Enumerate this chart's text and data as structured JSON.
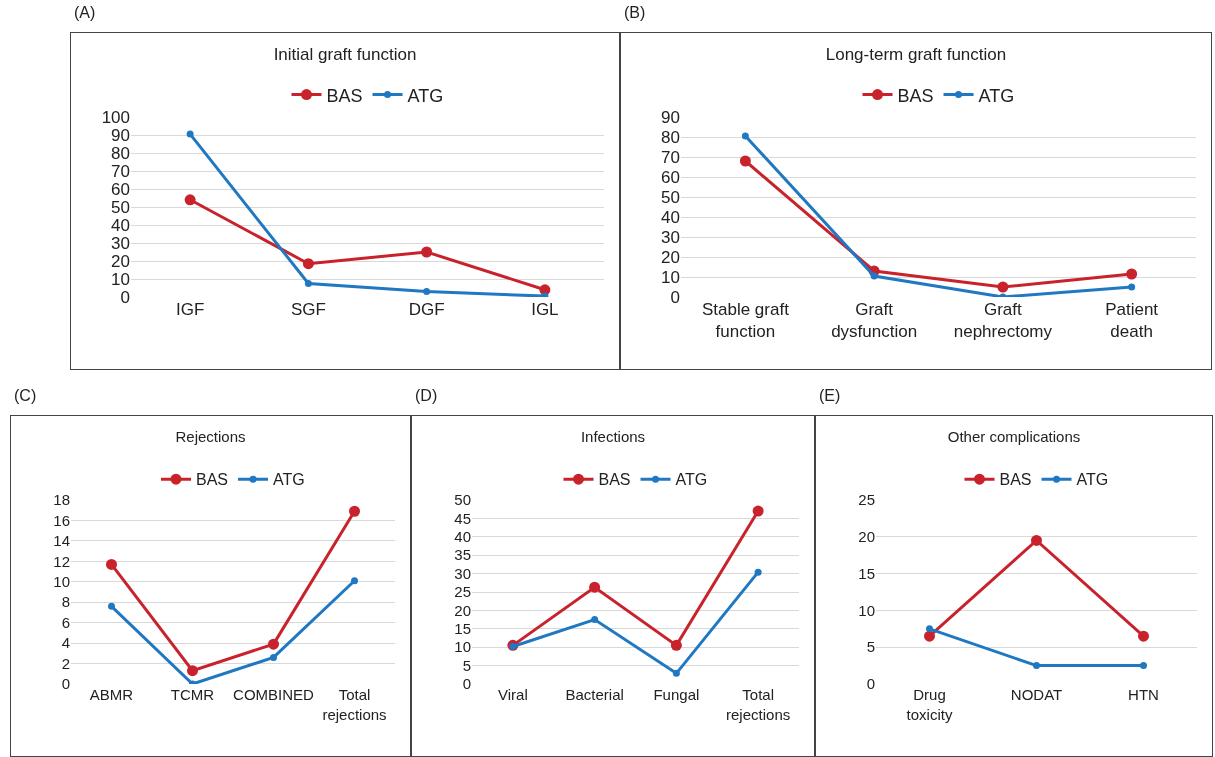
{
  "chart_data": [
    {
      "type": "line",
      "title": "Initial graft function",
      "annotations": [
        "(A)"
      ],
      "categories": [
        "IGF",
        "SGF",
        "DGF",
        "IGL"
      ],
      "ylim": [
        0,
        100
      ],
      "yticks": [
        0,
        10,
        20,
        30,
        40,
        50,
        60,
        70,
        80,
        90,
        100
      ],
      "grid": "y",
      "legend": "top",
      "marker": "circle",
      "line_style": "solid",
      "series": [
        {
          "name": "BAS",
          "color": "#c8232c",
          "values": [
            54,
            18.5,
            25,
            4
          ]
        },
        {
          "name": "ATG",
          "color": "#1f78c1",
          "values": [
            90.5,
            7.5,
            3,
            0.5
          ]
        }
      ]
    },
    {
      "type": "line",
      "title": "Long-term graft function",
      "annotations": [
        "(B)"
      ],
      "categories": [
        "Stable graft function",
        "Graft dysfunction",
        "Graft nephrectomy",
        "Patient death"
      ],
      "ylim": [
        0,
        90
      ],
      "yticks": [
        0,
        10,
        20,
        30,
        40,
        50,
        60,
        70,
        80,
        90
      ],
      "grid": "y",
      "legend": "top",
      "marker": "circle",
      "line_style": "solid",
      "series": [
        {
          "name": "BAS",
          "color": "#c8232c",
          "values": [
            68,
            13,
            5,
            11.5
          ]
        },
        {
          "name": "ATG",
          "color": "#1f78c1",
          "values": [
            80.5,
            10.5,
            0,
            5
          ]
        }
      ]
    },
    {
      "type": "line",
      "title": "Rejections",
      "annotations": [
        "(C)"
      ],
      "categories": [
        "ABMR",
        "TCMR",
        "COMBINED",
        "Total rejections"
      ],
      "ylim": [
        0,
        18
      ],
      "yticks": [
        0,
        2,
        4,
        6,
        8,
        10,
        12,
        14,
        16,
        18
      ],
      "grid": "y",
      "legend": "top",
      "marker": "circle",
      "line_style": "solid",
      "series": [
        {
          "name": "BAS",
          "color": "#c8232c",
          "values": [
            11.7,
            1.3,
            3.9,
            16.9
          ]
        },
        {
          "name": "ATG",
          "color": "#1f78c1",
          "values": [
            7.6,
            0,
            2.6,
            10.1
          ]
        }
      ]
    },
    {
      "type": "line",
      "title": "Infections",
      "annotations": [
        "(D)"
      ],
      "categories": [
        "Viral",
        "Bacterial",
        "Fungal",
        "Total rejections"
      ],
      "ylim": [
        0,
        50
      ],
      "yticks": [
        0,
        5,
        10,
        15,
        20,
        25,
        30,
        35,
        40,
        45,
        50
      ],
      "grid": "y",
      "legend": "top",
      "marker": "circle",
      "line_style": "solid",
      "series": [
        {
          "name": "BAS",
          "color": "#c8232c",
          "values": [
            10.5,
            26.3,
            10.5,
            47
          ]
        },
        {
          "name": "ATG",
          "color": "#1f78c1",
          "values": [
            10.2,
            17.5,
            2.9,
            30.4
          ]
        }
      ]
    },
    {
      "type": "line",
      "title": "Other complications",
      "annotations": [
        "(E)"
      ],
      "categories": [
        "Drug toxicity",
        "NODAT",
        "HTN"
      ],
      "ylim": [
        0,
        25
      ],
      "yticks": [
        0,
        5,
        10,
        15,
        20,
        25
      ],
      "grid": "y",
      "legend": "top",
      "marker": "circle",
      "line_style": "solid",
      "series": [
        {
          "name": "BAS",
          "color": "#c8232c",
          "values": [
            6.5,
            19.5,
            6.5
          ]
        },
        {
          "name": "ATG",
          "color": "#1f78c1",
          "values": [
            7.5,
            2.5,
            2.5
          ]
        }
      ]
    }
  ]
}
